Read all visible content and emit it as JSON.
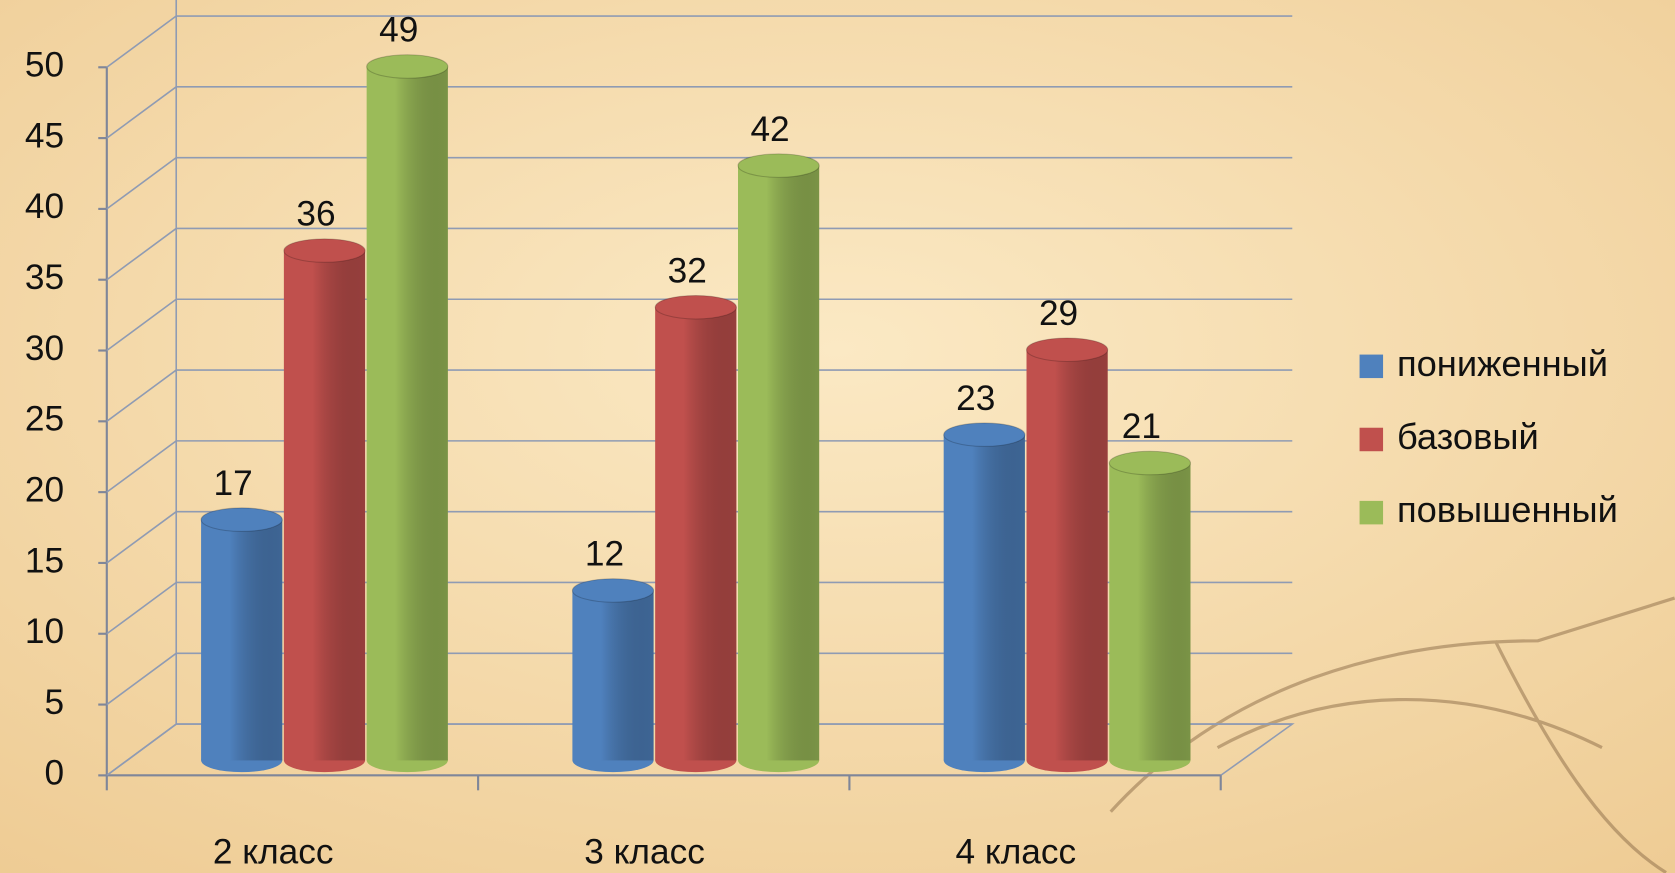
{
  "chart_data": {
    "type": "bar",
    "categories": [
      "2 класс",
      "3 класс",
      "4 класс"
    ],
    "series": [
      {
        "name": "пониженный",
        "color": "#4f81bd",
        "values": [
          17,
          12,
          23
        ]
      },
      {
        "name": "базовый",
        "color": "#c0504d",
        "values": [
          36,
          32,
          29
        ]
      },
      {
        "name": "повышенный",
        "color": "#9bbb59",
        "values": [
          49,
          42,
          21
        ]
      }
    ],
    "ylim": [
      0,
      50
    ],
    "yticks": [
      0,
      5,
      10,
      15,
      20,
      25,
      30,
      35,
      40,
      45,
      50
    ],
    "grid": true,
    "legend": "right"
  }
}
